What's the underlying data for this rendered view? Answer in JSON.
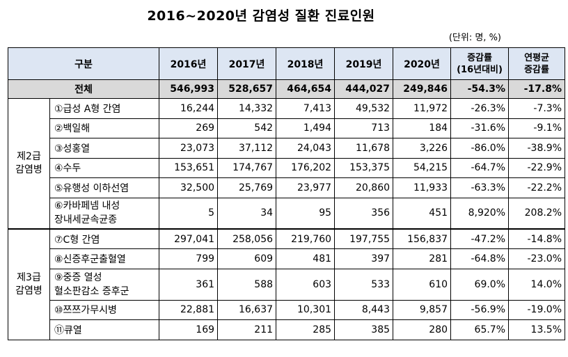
{
  "title": "2016~2020년 감염성 질환 진료인원",
  "unit": "(단위: 명, %)",
  "header": {
    "category": "구분",
    "years": [
      "2016년",
      "2017년",
      "2018년",
      "2019년",
      "2020년"
    ],
    "change_line1": "증감률",
    "change_line2": "(16년대비)",
    "cagr_line1": "연평균",
    "cagr_line2": "증감률"
  },
  "total": {
    "label": "전체",
    "values": [
      "546,993",
      "528,657",
      "464,654",
      "444,027",
      "249,846",
      "-54.3%",
      "-17.8%"
    ]
  },
  "groups": [
    {
      "label_line1": "제2급",
      "label_line2": "감염병",
      "rows": [
        {
          "name": "①급성 A형 간염",
          "values": [
            "16,244",
            "14,332",
            "7,413",
            "49,532",
            "11,972",
            "-26.3%",
            "-7.3%"
          ]
        },
        {
          "name": "②백일해",
          "values": [
            "269",
            "542",
            "1,494",
            "713",
            "184",
            "-31.6%",
            "-9.1%"
          ]
        },
        {
          "name": "③성홍열",
          "values": [
            "23,073",
            "37,112",
            "24,043",
            "11,678",
            "3,226",
            "-86.0%",
            "-38.9%"
          ]
        },
        {
          "name": "④수두",
          "values": [
            "153,651",
            "174,767",
            "176,202",
            "153,375",
            "54,215",
            "-64.7%",
            "-22.9%"
          ]
        },
        {
          "name": "⑤유행성 이하선염",
          "values": [
            "32,500",
            "25,769",
            "23,977",
            "20,860",
            "11,933",
            "-63.3%",
            "-22.2%"
          ]
        },
        {
          "name": "⑥카바페넴 내성",
          "name2": "장내세균속균종",
          "values": [
            "5",
            "34",
            "95",
            "356",
            "451",
            "8,920%",
            "208.2%"
          ]
        }
      ]
    },
    {
      "label_line1": "제3급",
      "label_line2": "감염병",
      "rows": [
        {
          "name": "⑦C형 간염",
          "values": [
            "297,041",
            "258,056",
            "219,760",
            "197,755",
            "156,837",
            "-47.2%",
            "-14.8%"
          ]
        },
        {
          "name": "⑧신증후군출혈열",
          "values": [
            "799",
            "609",
            "481",
            "397",
            "281",
            "-64.8%",
            "-23.0%"
          ]
        },
        {
          "name": "⑨중증 열성",
          "name2": "혈소판감소 증후군",
          "values": [
            "361",
            "588",
            "603",
            "533",
            "610",
            "69.0%",
            "14.0%"
          ]
        },
        {
          "name": "⑩쯔쯔가무시병",
          "values": [
            "22,881",
            "16,637",
            "10,301",
            "8,443",
            "9,857",
            "-56.9%",
            "-19.0%"
          ]
        },
        {
          "name": "⑪큐열",
          "values": [
            "169",
            "211",
            "285",
            "385",
            "280",
            "65.7%",
            "13.5%"
          ]
        }
      ]
    }
  ]
}
